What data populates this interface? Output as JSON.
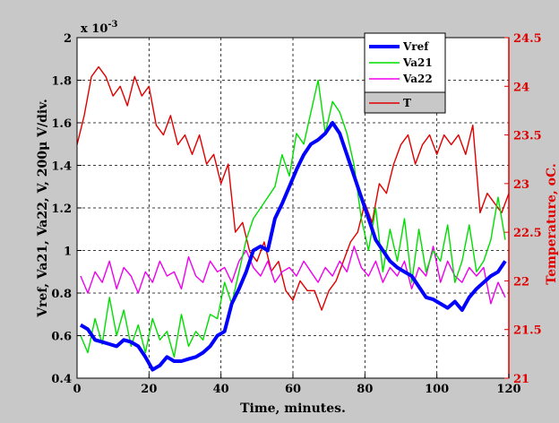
{
  "chart_data": {
    "type": "line",
    "xlabel": "Time, minutes.",
    "ylabel": "Vref, Va21, Va22, V, 200μ V/div.",
    "ylabel_right": "Temperature, oC.",
    "y_exponent_label": "x 10",
    "y_exponent_power": "-3",
    "xlim": [
      0,
      120
    ],
    "ylim": [
      0.4,
      2.0
    ],
    "ylim_right": [
      21,
      24.5
    ],
    "grid": true,
    "legend_position": "top-right",
    "x_ticks": [
      "0",
      "20",
      "40",
      "60",
      "80",
      "100",
      "120"
    ],
    "y_ticks": [
      "0.4",
      "0.6",
      "0.8",
      "1",
      "1.2",
      "1.4",
      "1.6",
      "1.8",
      "2"
    ],
    "y_right_ticks": [
      "21",
      "21.5",
      "22",
      "22.5",
      "23",
      "23.5",
      "24",
      "24.5"
    ],
    "colors": {
      "Vref": "#0000ff",
      "Va21": "#00dd00",
      "Va22": "#ee00ee",
      "T": "#e00000",
      "background": "#c8c8c8",
      "plot_background": "#ffffff"
    },
    "series": [
      {
        "name": "Vref",
        "axis": "left",
        "x": [
          1,
          3,
          5,
          7,
          9,
          11,
          13,
          15,
          17,
          19,
          21,
          23,
          25,
          27,
          29,
          31,
          33,
          35,
          37,
          39,
          41,
          43,
          45,
          47,
          49,
          51,
          53,
          55,
          57,
          59,
          61,
          63,
          65,
          67,
          69,
          71,
          73,
          75,
          77,
          79,
          81,
          83,
          85,
          87,
          89,
          91,
          93,
          95,
          97,
          99,
          101,
          103,
          105,
          107,
          109,
          111,
          113,
          115,
          117,
          119
        ],
        "y": [
          0.65,
          0.63,
          0.58,
          0.57,
          0.56,
          0.55,
          0.58,
          0.57,
          0.55,
          0.5,
          0.44,
          0.46,
          0.5,
          0.48,
          0.48,
          0.49,
          0.5,
          0.52,
          0.55,
          0.6,
          0.62,
          0.75,
          0.82,
          0.9,
          1.0,
          1.02,
          1.0,
          1.15,
          1.22,
          1.3,
          1.38,
          1.45,
          1.5,
          1.52,
          1.55,
          1.6,
          1.55,
          1.45,
          1.35,
          1.25,
          1.15,
          1.05,
          1.0,
          0.95,
          0.92,
          0.9,
          0.88,
          0.83,
          0.78,
          0.77,
          0.75,
          0.73,
          0.76,
          0.72,
          0.78,
          0.82,
          0.85,
          0.88,
          0.9,
          0.95
        ]
      },
      {
        "name": "Va21",
        "axis": "left",
        "x": [
          1,
          3,
          5,
          7,
          9,
          11,
          13,
          15,
          17,
          19,
          21,
          23,
          25,
          27,
          29,
          31,
          33,
          35,
          37,
          39,
          41,
          43,
          45,
          47,
          49,
          51,
          53,
          55,
          57,
          59,
          61,
          63,
          65,
          67,
          69,
          71,
          73,
          75,
          77,
          79,
          81,
          83,
          85,
          87,
          89,
          91,
          93,
          95,
          97,
          99,
          101,
          103,
          105,
          107,
          109,
          111,
          113,
          115,
          117,
          119
        ],
        "y": [
          0.6,
          0.52,
          0.68,
          0.56,
          0.78,
          0.6,
          0.72,
          0.55,
          0.65,
          0.52,
          0.68,
          0.58,
          0.62,
          0.5,
          0.7,
          0.55,
          0.62,
          0.58,
          0.7,
          0.68,
          0.85,
          0.75,
          0.9,
          1.05,
          1.15,
          1.2,
          1.25,
          1.3,
          1.45,
          1.35,
          1.55,
          1.5,
          1.65,
          1.8,
          1.55,
          1.7,
          1.65,
          1.55,
          1.4,
          1.15,
          1.0,
          1.2,
          0.9,
          1.1,
          0.95,
          1.15,
          0.85,
          1.1,
          0.9,
          1.0,
          0.95,
          1.12,
          0.85,
          0.95,
          1.12,
          0.9,
          0.95,
          1.05,
          1.25,
          1.05
        ]
      },
      {
        "name": "Va22",
        "axis": "left",
        "x": [
          1,
          3,
          5,
          7,
          9,
          11,
          13,
          15,
          17,
          19,
          21,
          23,
          25,
          27,
          29,
          31,
          33,
          35,
          37,
          39,
          41,
          43,
          45,
          47,
          49,
          51,
          53,
          55,
          57,
          59,
          61,
          63,
          65,
          67,
          69,
          71,
          73,
          75,
          77,
          79,
          81,
          83,
          85,
          87,
          89,
          91,
          93,
          95,
          97,
          99,
          101,
          103,
          105,
          107,
          109,
          111,
          113,
          115,
          117,
          119
        ],
        "y": [
          0.88,
          0.8,
          0.9,
          0.85,
          0.95,
          0.82,
          0.92,
          0.88,
          0.8,
          0.9,
          0.85,
          0.95,
          0.88,
          0.9,
          0.82,
          0.97,
          0.88,
          0.85,
          0.95,
          0.9,
          0.92,
          0.85,
          0.95,
          1.0,
          0.92,
          0.88,
          0.95,
          0.85,
          0.9,
          0.92,
          0.88,
          0.95,
          0.9,
          0.85,
          0.92,
          0.88,
          0.95,
          0.9,
          1.02,
          0.92,
          0.88,
          0.95,
          0.85,
          0.92,
          0.88,
          0.95,
          0.82,
          0.92,
          0.88,
          1.02,
          0.85,
          0.95,
          0.88,
          0.85,
          0.92,
          0.88,
          0.92,
          0.75,
          0.85,
          0.78
        ]
      },
      {
        "name": "T",
        "axis": "right",
        "x": [
          0,
          2,
          4,
          6,
          8,
          10,
          12,
          14,
          16,
          18,
          20,
          22,
          24,
          26,
          28,
          30,
          32,
          34,
          36,
          38,
          40,
          42,
          44,
          46,
          48,
          50,
          52,
          54,
          56,
          58,
          60,
          62,
          64,
          66,
          68,
          70,
          72,
          74,
          76,
          78,
          80,
          82,
          84,
          86,
          88,
          90,
          92,
          94,
          96,
          98,
          100,
          102,
          104,
          106,
          108,
          110,
          112,
          114,
          116,
          118,
          120
        ],
        "y": [
          23.4,
          23.7,
          24.1,
          24.2,
          24.1,
          23.9,
          24.0,
          23.8,
          24.1,
          23.9,
          24.0,
          23.6,
          23.5,
          23.7,
          23.4,
          23.5,
          23.3,
          23.5,
          23.2,
          23.3,
          23.0,
          23.2,
          22.5,
          22.6,
          22.3,
          22.2,
          22.4,
          22.1,
          22.2,
          21.9,
          21.8,
          22.0,
          21.9,
          21.9,
          21.7,
          21.9,
          22.0,
          22.2,
          22.4,
          22.5,
          22.8,
          22.6,
          23.0,
          22.9,
          23.2,
          23.4,
          23.5,
          23.2,
          23.4,
          23.5,
          23.3,
          23.5,
          23.4,
          23.5,
          23.3,
          23.6,
          22.7,
          22.9,
          22.8,
          22.7,
          22.9
        ]
      }
    ]
  }
}
